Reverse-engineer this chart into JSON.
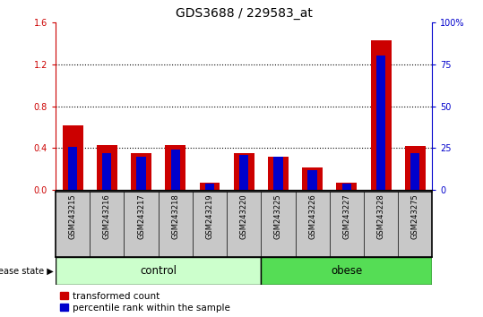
{
  "title": "GDS3688 / 229583_at",
  "samples": [
    "GSM243215",
    "GSM243216",
    "GSM243217",
    "GSM243218",
    "GSM243219",
    "GSM243220",
    "GSM243225",
    "GSM243226",
    "GSM243227",
    "GSM243228",
    "GSM243275"
  ],
  "red_values": [
    0.62,
    0.43,
    0.35,
    0.43,
    0.07,
    0.35,
    0.32,
    0.22,
    0.07,
    1.43,
    0.42
  ],
  "blue_values_right": [
    26,
    22,
    20,
    24,
    4,
    21,
    20,
    12,
    4,
    80,
    22
  ],
  "ylim_left": [
    0,
    1.6
  ],
  "ylim_right": [
    0,
    100
  ],
  "yticks_left": [
    0,
    0.4,
    0.8,
    1.2,
    1.6
  ],
  "yticks_right": [
    0,
    25,
    50,
    75,
    100
  ],
  "ytick_labels_right": [
    "0",
    "25",
    "50",
    "75",
    "100%"
  ],
  "red_color": "#cc0000",
  "blue_color": "#0000cc",
  "bg_color": "#c8c8c8",
  "control_color": "#ccffcc",
  "obese_color": "#55dd55",
  "legend_red": "transformed count",
  "legend_blue": "percentile rank within the sample",
  "disease_label": "disease state",
  "control_label": "control",
  "obese_label": "obese",
  "title_fontsize": 10,
  "tick_fontsize": 7,
  "legend_fontsize": 7.5,
  "group_label_fontsize": 8.5,
  "axis_label_color_left": "#cc0000",
  "axis_label_color_right": "#0000cc",
  "n_control": 6,
  "n_obese": 5
}
